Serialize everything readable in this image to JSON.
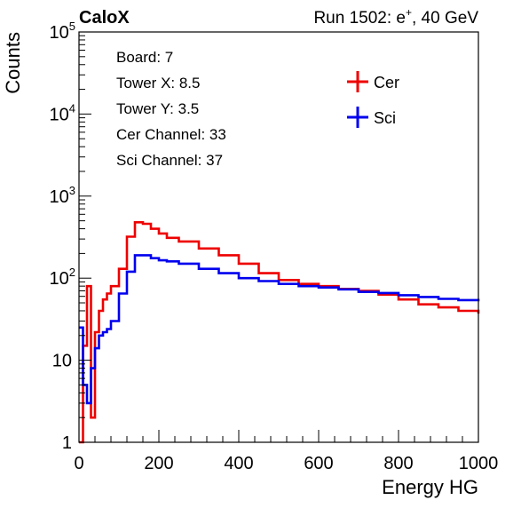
{
  "header": {
    "left": "CaloX",
    "right_prefix": "Run 1502: e",
    "right_sup": "+",
    "right_suffix": ", 40 GeV"
  },
  "info_box": {
    "lines": [
      "Board: 7",
      "Tower X: 8.5",
      "Tower Y: 3.5",
      "Cer Channel: 33",
      "Sci Channel: 37"
    ]
  },
  "chart_data": {
    "type": "line",
    "title": "",
    "xlabel": "Energy HG",
    "ylabel": "Counts",
    "xlim": [
      0,
      1000
    ],
    "ylim": [
      1,
      100000
    ],
    "yscale": "log",
    "grid": false,
    "legend_position": "top-right",
    "x_ticks": [
      "0",
      "200",
      "400",
      "600",
      "800",
      "1000"
    ],
    "y_ticks": [
      {
        "base": "1",
        "exp": ""
      },
      {
        "base": "10",
        "exp": ""
      },
      {
        "base": "10",
        "exp": "2"
      },
      {
        "base": "10",
        "exp": "3"
      },
      {
        "base": "10",
        "exp": "4"
      },
      {
        "base": "10",
        "exp": "5"
      }
    ],
    "x": [
      0,
      10,
      20,
      30,
      40,
      50,
      60,
      70,
      80,
      100,
      120,
      140,
      160,
      180,
      200,
      220,
      250,
      300,
      350,
      400,
      450,
      500,
      550,
      600,
      650,
      700,
      750,
      800,
      850,
      900,
      950,
      1000
    ],
    "series": [
      {
        "name": "Cer",
        "color": "#ee0000",
        "values": [
          1,
          15,
          80,
          2,
          22,
          40,
          55,
          65,
          80,
          130,
          320,
          480,
          460,
          400,
          350,
          310,
          280,
          230,
          190,
          150,
          115,
          95,
          85,
          80,
          74,
          70,
          63,
          55,
          48,
          44,
          40,
          37
        ]
      },
      {
        "name": "Sci",
        "color": "#0000ee",
        "values": [
          25,
          5,
          3,
          8,
          14,
          20,
          22,
          24,
          30,
          65,
          120,
          190,
          190,
          175,
          165,
          160,
          150,
          130,
          115,
          100,
          92,
          85,
          80,
          77,
          73,
          68,
          66,
          62,
          59,
          56,
          54,
          56
        ]
      }
    ]
  }
}
